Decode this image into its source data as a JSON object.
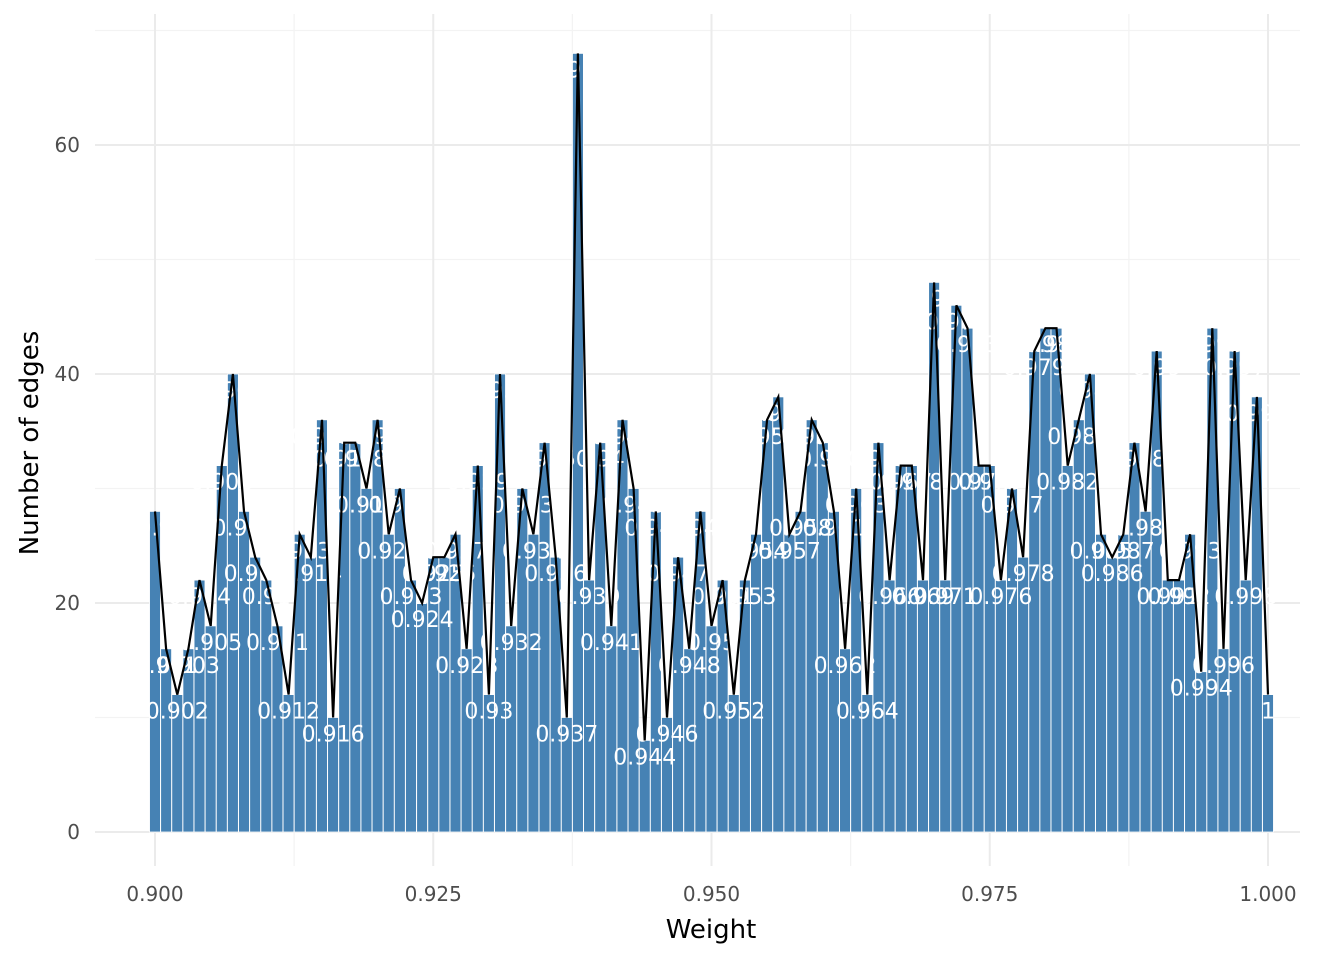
{
  "chart_data": {
    "type": "bar",
    "title": "",
    "xlabel": "Weight",
    "ylabel": "Number of edges",
    "xlim": [
      0.898,
      1.002
    ],
    "ylim": [
      -3,
      70
    ],
    "x_ticks": [
      "0.900",
      "0.925",
      "0.950",
      "0.975",
      "1.000"
    ],
    "x_tick_values": [
      0.9,
      0.925,
      0.95,
      0.975,
      1.0
    ],
    "y_ticks": [
      "0",
      "20",
      "40",
      "60"
    ],
    "y_tick_values": [
      0,
      20,
      40,
      60
    ],
    "grid": "on",
    "bar_color": "#4682b4",
    "label_color": "#ffffff",
    "line_color": "#000000",
    "bar_width": 0.001,
    "series": [
      {
        "x": [
          0.9,
          0.901,
          0.902,
          0.903,
          0.904,
          0.905,
          0.906,
          0.907,
          0.908,
          0.909,
          0.91,
          0.911,
          0.912,
          0.913,
          0.914,
          0.915,
          0.916,
          0.917,
          0.918,
          0.919,
          0.92,
          0.921,
          0.922,
          0.923,
          0.924,
          0.925,
          0.926,
          0.927,
          0.928,
          0.929,
          0.93,
          0.931,
          0.932,
          0.933,
          0.934,
          0.935,
          0.936,
          0.937,
          0.938,
          0.939,
          0.94,
          0.941,
          0.942,
          0.943,
          0.944,
          0.945,
          0.946,
          0.947,
          0.948,
          0.949,
          0.95,
          0.951,
          0.952,
          0.953,
          0.954,
          0.955,
          0.956,
          0.957,
          0.958,
          0.959,
          0.96,
          0.961,
          0.962,
          0.963,
          0.964,
          0.965,
          0.966,
          0.967,
          0.968,
          0.969,
          0.97,
          0.971,
          0.972,
          0.973,
          0.974,
          0.975,
          0.976,
          0.977,
          0.978,
          0.979,
          0.98,
          0.981,
          0.982,
          0.983,
          0.984,
          0.985,
          0.986,
          0.987,
          0.988,
          0.989,
          0.99,
          0.991,
          0.992,
          0.993,
          0.994,
          0.995,
          0.996,
          0.997,
          0.998,
          0.999,
          1.0
        ],
        "values": [
          28,
          16,
          12,
          16,
          22,
          18,
          32,
          40,
          28,
          24,
          22,
          18,
          12,
          26,
          24,
          36,
          10,
          34,
          34,
          30,
          36,
          26,
          30,
          22,
          20,
          24,
          24,
          26,
          16,
          32,
          12,
          40,
          18,
          30,
          26,
          34,
          24,
          10,
          68,
          22,
          34,
          18,
          36,
          30,
          8,
          28,
          10,
          24,
          16,
          28,
          18,
          22,
          12,
          22,
          26,
          36,
          38,
          26,
          28,
          36,
          34,
          28,
          16,
          30,
          12,
          34,
          22,
          32,
          32,
          22,
          48,
          22,
          46,
          44,
          32,
          32,
          22,
          30,
          24,
          42,
          44,
          44,
          32,
          36,
          40,
          26,
          24,
          26,
          34,
          28,
          42,
          22,
          22,
          26,
          14,
          44,
          16,
          42,
          22,
          38,
          12
        ],
        "labels": [
          "0.9",
          "0.901",
          "0.902",
          "0.903",
          "0.904",
          "0.905",
          "0.906",
          "0.907",
          "0.908",
          "0.909",
          "0.91",
          "0.911",
          "0.912",
          "0.913",
          "0.914",
          "0.915",
          "0.916",
          "0.917",
          "0.918",
          "0.919",
          "0.92",
          "0.921",
          "0.922",
          "0.923",
          "0.924",
          "0.925",
          "0.926",
          "0.927",
          "0.928",
          "0.929",
          "0.93",
          "0.931",
          "0.932",
          "0.933",
          "0.934",
          "0.935",
          "0.936",
          "0.937",
          "0.938",
          "0.939",
          "0.94",
          "0.941",
          "0.942",
          "0.943",
          "0.944",
          "0.945",
          "0.946",
          "0.947",
          "0.948",
          "0.949",
          "0.95",
          "0.951",
          "0.952",
          "0.953",
          "0.954",
          "0.955",
          "0.956",
          "0.957",
          "0.958",
          "0.959",
          "0.96",
          "0.961",
          "0.962",
          "0.963",
          "0.964",
          "0.965",
          "0.966",
          "0.967",
          "0.968",
          "0.969",
          "0.97",
          "0.971",
          "0.972",
          "0.973",
          "0.974",
          "0.975",
          "0.976",
          "0.977",
          "0.978",
          "0.979",
          "0.98",
          "0.981",
          "0.982",
          "0.983",
          "0.984",
          "0.985",
          "0.986",
          "0.987",
          "0.988",
          "0.989",
          "0.99",
          "0.991",
          "0.992",
          "0.993",
          "0.994",
          "0.995",
          "0.996",
          "0.997",
          "0.998",
          "0.999",
          "1"
        ]
      }
    ]
  }
}
